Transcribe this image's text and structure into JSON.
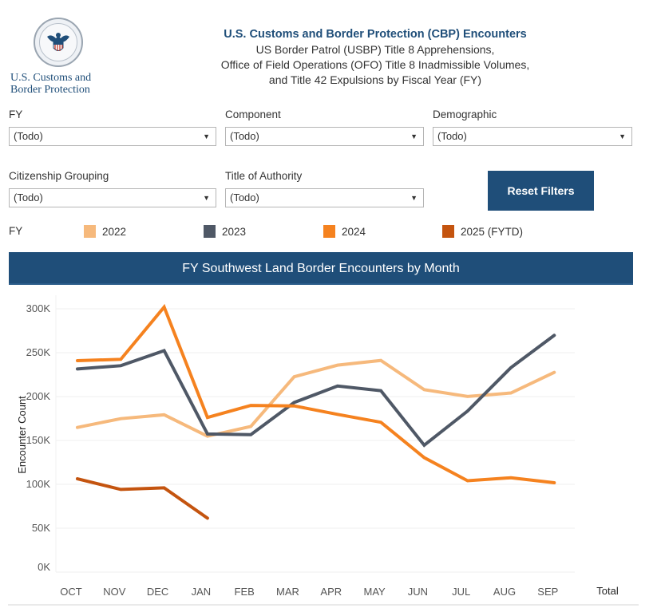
{
  "logo": {
    "line1": "U.S. Customs and",
    "line2": "Border Protection"
  },
  "header": {
    "title": "U.S. Customs and Border Protection (CBP) Encounters",
    "line2": "US Border Patrol (USBP) Title 8 Apprehensions,",
    "line3": "Office of Field Operations (OFO) Title 8 Inadmissible Volumes,",
    "line4": "and Title 42 Expulsions by Fiscal Year (FY)"
  },
  "filters": [
    {
      "label": "FY",
      "value": "(Todo)"
    },
    {
      "label": "Component",
      "value": "(Todo)"
    },
    {
      "label": "Demographic",
      "value": "(Todo)"
    },
    {
      "label": "Citizenship Grouping",
      "value": "(Todo)"
    },
    {
      "label": "Title of Authority",
      "value": "(Todo)"
    }
  ],
  "reset_button": "Reset Filters",
  "legend": {
    "title": "FY",
    "items": [
      {
        "label": "2022",
        "color": "#F6B97C"
      },
      {
        "label": "2023",
        "color": "#4F5866"
      },
      {
        "label": "2024",
        "color": "#F5821F"
      },
      {
        "label": "2025 (FYTD)",
        "color": "#C4540F"
      }
    ]
  },
  "chart_data": {
    "type": "line",
    "title": "FY Southwest Land Border Encounters by Month",
    "xlabel": "",
    "ylabel": "Encounter Count",
    "categories": [
      "OCT",
      "NOV",
      "DEC",
      "JAN",
      "FEB",
      "MAR",
      "APR",
      "MAY",
      "JUN",
      "JUL",
      "AUG",
      "SEP"
    ],
    "extra_column_label": "Total",
    "ylim": [
      0,
      310000
    ],
    "yticks": [
      0,
      50000,
      100000,
      150000,
      200000,
      250000,
      300000
    ],
    "ytick_labels": [
      "0K",
      "50K",
      "100K",
      "150K",
      "200K",
      "250K",
      "300K"
    ],
    "grid": true,
    "legend_position": "top",
    "series": [
      {
        "name": "2022",
        "color": "#F6B97C",
        "values": [
          164837,
          174845,
          179253,
          154874,
          166010,
          222574,
          235785,
          241136,
          207834,
          200162,
          204087,
          227547
        ]
      },
      {
        "name": "2023",
        "color": "#4F5866",
        "values": [
          231529,
          235173,
          252315,
          157358,
          156630,
          193249,
          211992,
          206690,
          144556,
          183503,
          232972,
          269735
        ]
      },
      {
        "name": "2024",
        "color": "#F5821F",
        "values": [
          240912,
          242418,
          301981,
          176205,
          189913,
          189359,
          179737,
          170716,
          130415,
          104101,
          107473,
          101790
        ]
      },
      {
        "name": "2025 (FYTD)",
        "color": "#C4540F",
        "values": [
          106321,
          94190,
          96035,
          61447,
          null,
          null,
          null,
          null,
          null,
          null,
          null,
          null
        ]
      }
    ]
  }
}
